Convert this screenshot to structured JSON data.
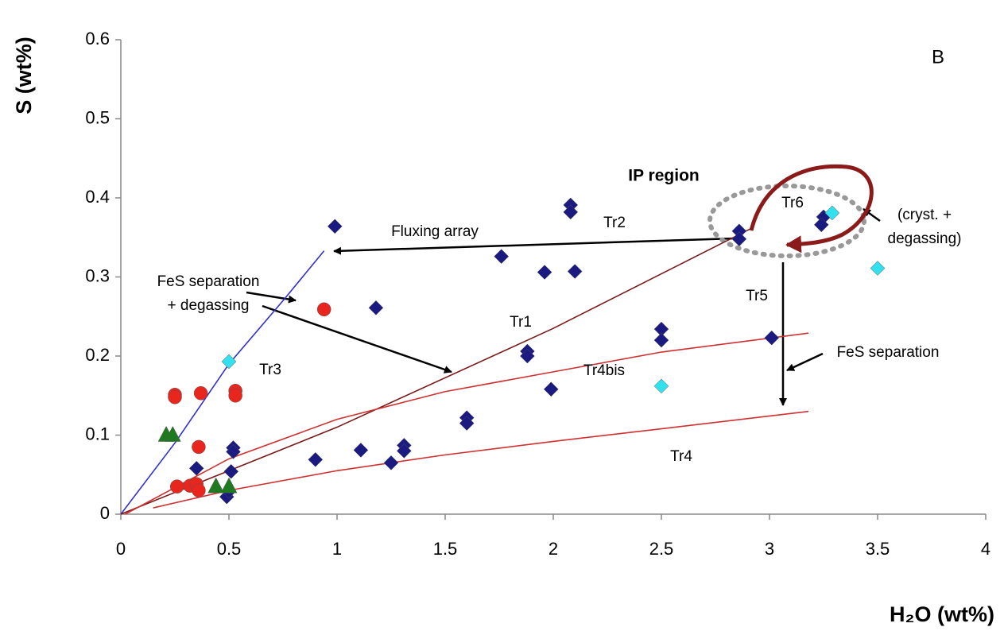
{
  "chart_data": {
    "type": "scatter",
    "x_label": "H₂O (wt%)",
    "y_label": "S  (wt%)",
    "xlim": [
      0,
      4
    ],
    "ylim": [
      0,
      0.6
    ],
    "xticks": [
      0,
      0.5,
      1,
      1.5,
      2,
      2.5,
      3,
      3.5,
      4
    ],
    "yticks": [
      0,
      0.1,
      0.2,
      0.3,
      0.4,
      0.5,
      0.6
    ],
    "grid": false,
    "series": [
      {
        "mode": "markers",
        "marker": "diamond",
        "color": "#1a1a80",
        "x": [
          0.99,
          2.08,
          2.08,
          2.1,
          1.76,
          1.96,
          1.18,
          2.86,
          2.86,
          3.25,
          3.24,
          2.5,
          2.5,
          3.01,
          1.88,
          1.88,
          1.99,
          1.6,
          1.6,
          1.31,
          1.31,
          1.11,
          1.25,
          0.9,
          0.52,
          0.52,
          0.51,
          0.35,
          0.49,
          0.5
        ],
        "values": [
          0.364,
          0.391,
          0.382,
          0.307,
          0.326,
          0.306,
          0.261,
          0.358,
          0.348,
          0.376,
          0.366,
          0.234,
          0.22,
          0.223,
          0.206,
          0.2,
          0.158,
          0.122,
          0.115,
          0.087,
          0.08,
          0.081,
          0.065,
          0.069,
          0.084,
          0.079,
          0.054,
          0.058,
          0.022,
          0.029
        ]
      },
      {
        "mode": "markers",
        "marker": "diamond",
        "color": "#33e0ee",
        "x": [
          0.5,
          3.29,
          3.5,
          2.5
        ],
        "values": [
          0.193,
          0.381,
          0.311,
          0.162
        ]
      },
      {
        "mode": "markers",
        "marker": "circle",
        "color": "#e8261e",
        "x": [
          0.94,
          0.25,
          0.25,
          0.37,
          0.53,
          0.53,
          0.36,
          0.26,
          0.32,
          0.35,
          0.36
        ],
        "values": [
          0.259,
          0.151,
          0.148,
          0.153,
          0.156,
          0.15,
          0.085,
          0.035,
          0.036,
          0.038,
          0.03
        ]
      },
      {
        "mode": "markers",
        "marker": "triangle",
        "color": "#1f7a1f",
        "x": [
          0.21,
          0.24,
          0.44,
          0.5
        ],
        "values": [
          0.1,
          0.1,
          0.035,
          0.035
        ]
      },
      {
        "mode": "line",
        "color": "#3030d0",
        "x": [
          0,
          0.25,
          0.5,
          0.75,
          0.94
        ],
        "values": [
          0,
          0.09,
          0.19,
          0.27,
          0.333
        ]
      },
      {
        "mode": "line",
        "color": "#7a1a1a",
        "x": [
          0,
          1,
          2,
          2.92
        ],
        "values": [
          0,
          0.11,
          0.235,
          0.362
        ]
      },
      {
        "mode": "line",
        "color": "#d03030",
        "x": [
          0.02,
          0.5,
          1,
          1.5,
          2,
          2.5,
          3.18
        ],
        "values": [
          0,
          0.07,
          0.12,
          0.155,
          0.18,
          0.205,
          0.229
        ]
      },
      {
        "mode": "line",
        "color": "#d03030",
        "x": [
          0.15,
          0.5,
          1,
          1.5,
          2,
          2.5,
          3.18
        ],
        "values": [
          0.008,
          0.03,
          0.055,
          0.075,
          0.092,
          0.108,
          0.13
        ]
      }
    ],
    "annotations": [
      "B",
      "IP region",
      "Tr6",
      "Tr2",
      "Fluxing array",
      "(cryst. +",
      "degassing)",
      "FeS separation",
      "+ degassing",
      "Tr1",
      "Tr5",
      "Tr3",
      "Tr4bis",
      "FeS separation",
      "Tr4"
    ]
  }
}
